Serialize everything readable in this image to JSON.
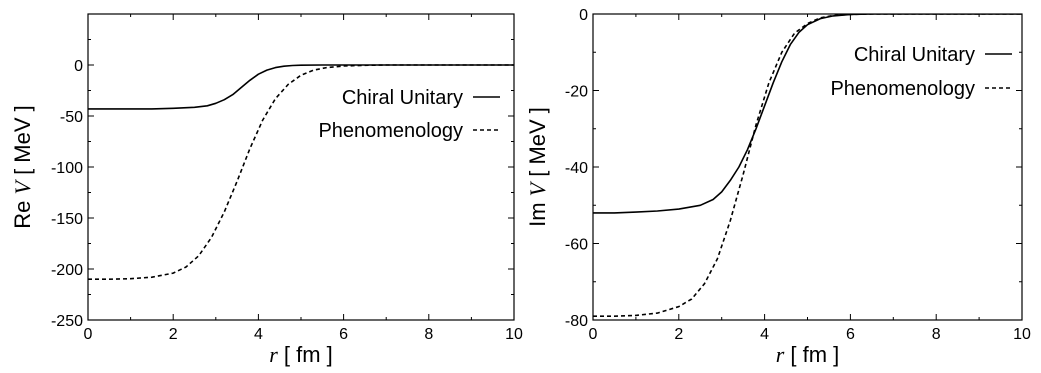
{
  "chart_data": [
    {
      "type": "line",
      "title": "",
      "xlabel": {
        "var": "r",
        "unit": " [ fm ]"
      },
      "ylabel": {
        "prefix": "Re ",
        "var": "V",
        "unit": " [ MeV ]"
      },
      "xlim": [
        0,
        10
      ],
      "ylim": [
        -250,
        50
      ],
      "xticks": [
        0,
        2,
        4,
        6,
        8,
        10
      ],
      "yticks": [
        -250,
        -200,
        -150,
        -100,
        -50,
        0
      ],
      "grid": false,
      "legend_position": "upper-right",
      "series": [
        {
          "name": "Chiral Unitary",
          "style": "solid",
          "x": [
            0,
            0.5,
            1,
            1.5,
            2,
            2.5,
            2.8,
            3.0,
            3.2,
            3.4,
            3.6,
            3.8,
            4.0,
            4.2,
            4.4,
            4.6,
            4.8,
            5.0,
            5.5,
            6,
            7,
            8,
            9,
            10
          ],
          "y": [
            -43,
            -43,
            -43,
            -43,
            -42.5,
            -41.5,
            -40,
            -37.5,
            -34,
            -29,
            -22,
            -15,
            -9,
            -5,
            -2.5,
            -1.2,
            -0.5,
            -0.2,
            0,
            0,
            0,
            0,
            0,
            0
          ]
        },
        {
          "name": "Phenomenology",
          "style": "dashed",
          "x": [
            0,
            0.5,
            1,
            1.5,
            2,
            2.3,
            2.6,
            2.9,
            3.2,
            3.5,
            3.8,
            4.1,
            4.4,
            4.7,
            5.0,
            5.3,
            5.6,
            6.0,
            6.5,
            7,
            8,
            9,
            10
          ],
          "y": [
            -210,
            -210,
            -209.5,
            -208,
            -204,
            -198,
            -187,
            -169,
            -144,
            -114,
            -82,
            -54,
            -33,
            -19,
            -10,
            -5,
            -2.5,
            -1,
            -0.3,
            0,
            0,
            0,
            0
          ]
        }
      ]
    },
    {
      "type": "line",
      "title": "",
      "xlabel": {
        "var": "r",
        "unit": " [ fm ]"
      },
      "ylabel": {
        "prefix": "Im ",
        "var": "V",
        "unit": " [ MeV ]"
      },
      "xlim": [
        0,
        10
      ],
      "ylim": [
        -80,
        0
      ],
      "xticks": [
        0,
        2,
        4,
        6,
        8,
        10
      ],
      "yticks": [
        -80,
        -60,
        -40,
        -20,
        0
      ],
      "grid": false,
      "legend_position": "upper-right",
      "series": [
        {
          "name": "Chiral Unitary",
          "style": "solid",
          "x": [
            0,
            0.5,
            1,
            1.5,
            2,
            2.5,
            2.8,
            3.0,
            3.2,
            3.4,
            3.6,
            3.8,
            4.0,
            4.2,
            4.4,
            4.6,
            4.8,
            5.0,
            5.3,
            5.6,
            6.0,
            6.5,
            7,
            8,
            9,
            10
          ],
          "y": [
            -52,
            -52,
            -51.8,
            -51.5,
            -51,
            -50,
            -48.5,
            -46.5,
            -43.5,
            -40,
            -35.5,
            -30,
            -24,
            -18,
            -12.5,
            -8,
            -4.8,
            -2.8,
            -1.2,
            -0.5,
            -0.1,
            0,
            0,
            0,
            0,
            0
          ]
        },
        {
          "name": "Phenomenology",
          "style": "dashed",
          "x": [
            0,
            0.5,
            1,
            1.5,
            2,
            2.3,
            2.6,
            2.9,
            3.2,
            3.5,
            3.8,
            4.1,
            4.4,
            4.7,
            5.0,
            5.3,
            5.6,
            6.0,
            6.5,
            7,
            8,
            9,
            10
          ],
          "y": [
            -79,
            -79,
            -78.8,
            -78.2,
            -76.5,
            -74.5,
            -70.5,
            -64,
            -54,
            -42,
            -29,
            -18,
            -10,
            -5,
            -2.5,
            -1,
            -0.4,
            -0.1,
            0,
            0,
            0,
            0,
            0
          ]
        }
      ]
    }
  ]
}
